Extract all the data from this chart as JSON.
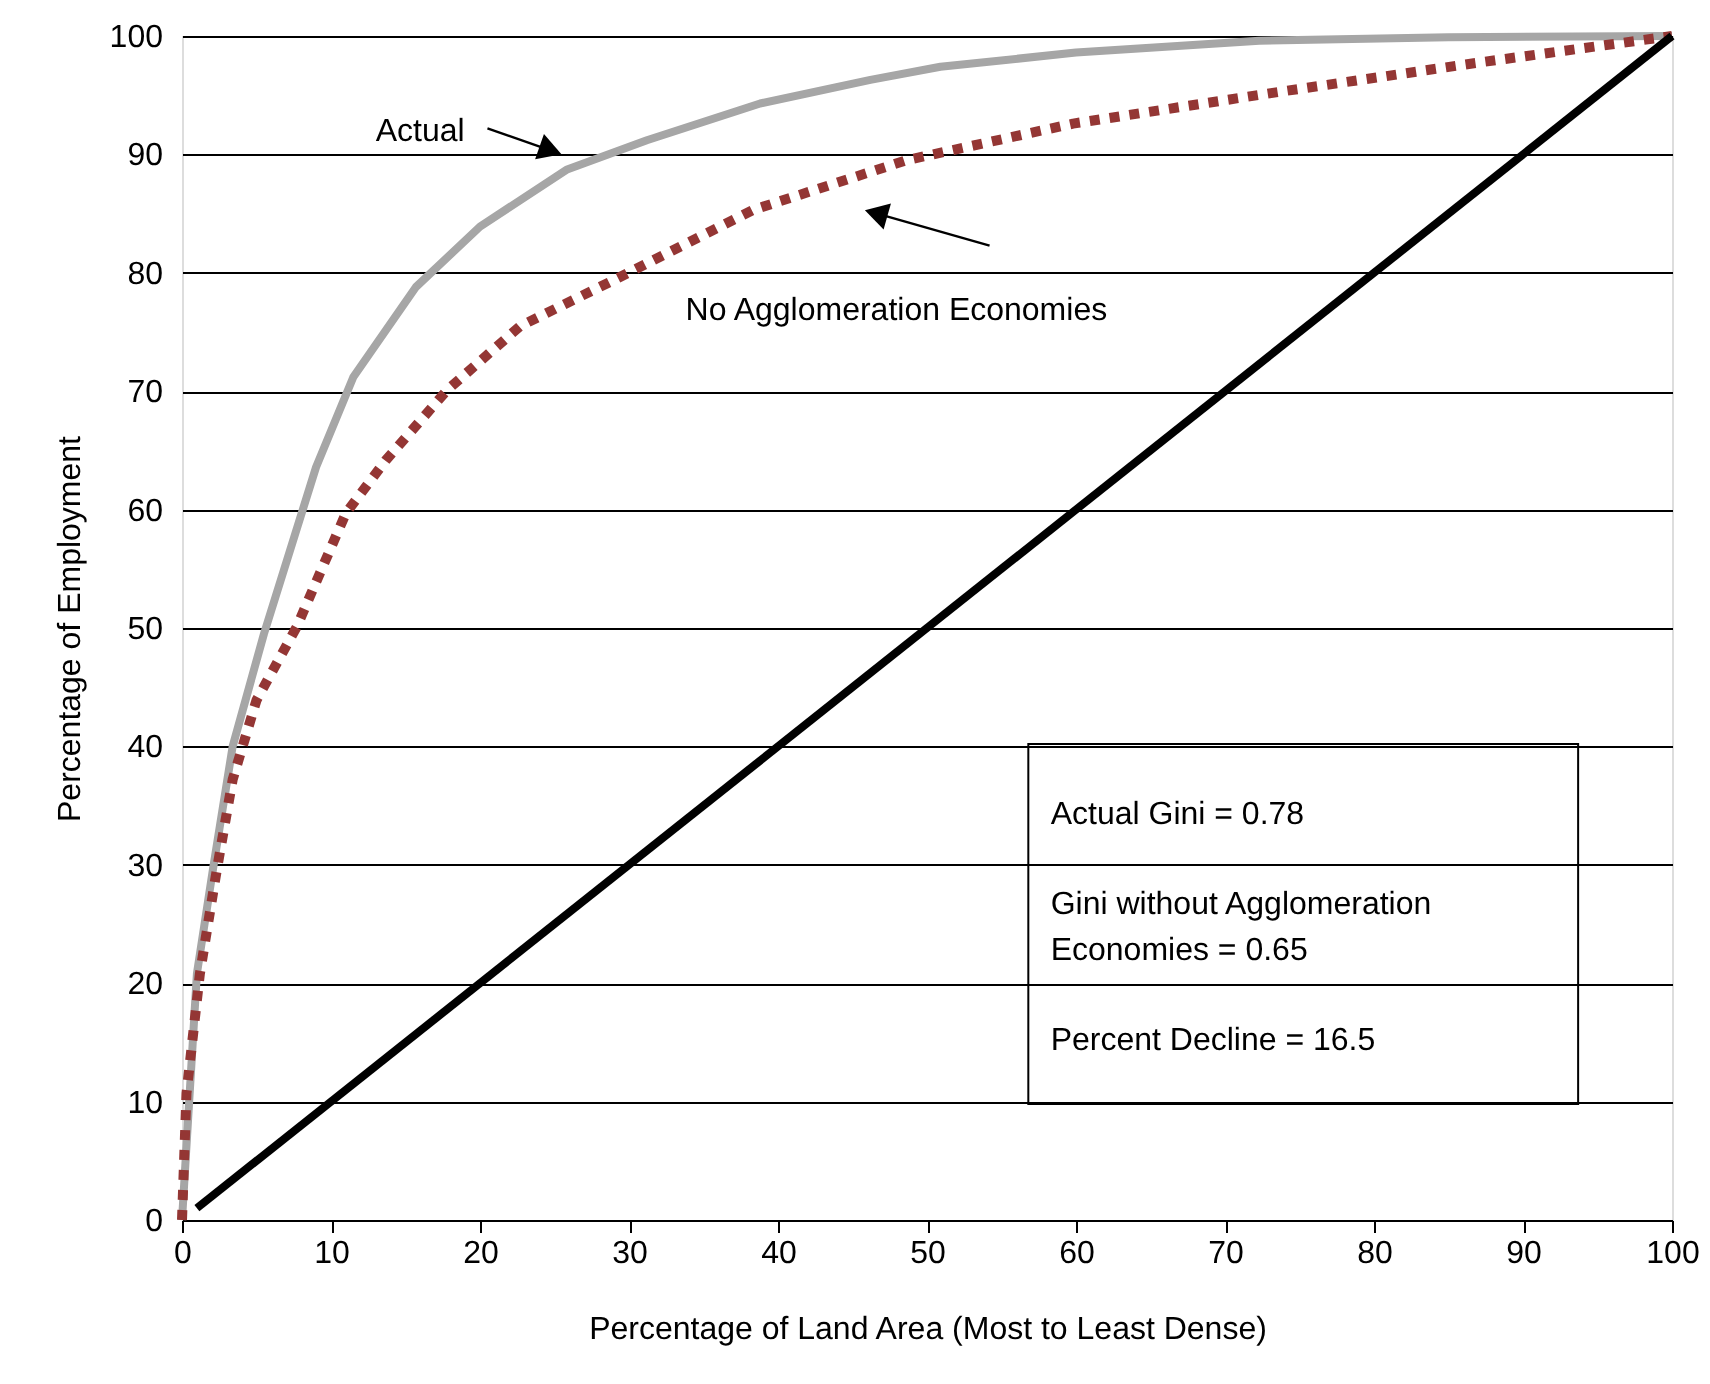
{
  "chart_data": {
    "type": "line",
    "xlabel": "Percentage of Land Area (Most to Least Dense)",
    "ylabel": "Percentage of Employment",
    "xlim": [
      0,
      100
    ],
    "xticks": [
      0,
      10,
      20,
      30,
      40,
      50,
      60,
      70,
      80,
      90,
      100
    ],
    "ylim": [
      0,
      100
    ],
    "yticks": [
      0,
      10,
      20,
      30,
      40,
      50,
      60,
      70,
      80,
      90,
      100
    ],
    "grid": "y",
    "legend": false,
    "marker": "none",
    "annotations": [
      "Actual Gini = 0.78",
      "Gini without Agglomeration Economies = 0.65",
      "Percent Decline = 16.5"
    ],
    "series": [
      {
        "name": "Actual",
        "color": "#a6a6a6",
        "line_style": "solid",
        "x": [
          0,
          1.0,
          2.1,
          3.4,
          5.5,
          9.0,
          11.5,
          15.7,
          20.0,
          25.8,
          31.2,
          38.8,
          46.2,
          50.9,
          60,
          72.3,
          85,
          100
        ],
        "values": [
          0,
          20.8,
          29.8,
          40,
          49.5,
          63.6,
          71.2,
          78.8,
          83.9,
          88.7,
          91.2,
          94.3,
          96.3,
          97.4,
          98.6,
          99.6,
          99.9,
          100
        ]
      },
      {
        "name": "No Agglomeration Economies",
        "color": "#943634",
        "line_style": "dotted",
        "x": [
          0,
          0.3,
          1.2,
          2.3,
          3.4,
          5.0,
          7.7,
          11.0,
          13.7,
          17.8,
          22.7,
          29.0,
          38.3,
          48.6,
          59.8,
          73.2,
          86.7,
          100
        ],
        "values": [
          0,
          10.7,
          20.8,
          29.3,
          37.2,
          43.9,
          50.1,
          59.7,
          64.2,
          70.1,
          75.5,
          79.4,
          85.3,
          89.5,
          92.6,
          95.2,
          97.7,
          100
        ]
      },
      {
        "color": "#000000",
        "line_style": "solid",
        "x": [
          1,
          100
        ],
        "values": [
          1,
          100
        ]
      }
    ]
  }
}
